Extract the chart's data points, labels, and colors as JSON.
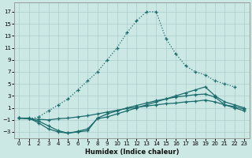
{
  "bg_color": "#cce8e5",
  "grid_color": "#aacece",
  "line_color": "#1a6b6b",
  "xlabel": "Humidex (Indice chaleur)",
  "xlim": [
    -0.5,
    23.5
  ],
  "ylim": [
    -4,
    18.5
  ],
  "xticks": [
    0,
    1,
    2,
    3,
    4,
    5,
    6,
    7,
    8,
    9,
    10,
    11,
    12,
    13,
    14,
    15,
    16,
    17,
    18,
    19,
    20,
    21,
    22,
    23
  ],
  "yticks": [
    -3,
    -1,
    1,
    3,
    5,
    7,
    9,
    11,
    13,
    15,
    17
  ],
  "lines": [
    {
      "x": [
        0,
        1,
        2,
        3,
        4,
        5,
        6,
        7,
        8,
        9,
        10,
        11,
        12,
        13,
        14,
        15,
        16,
        17,
        18,
        19,
        20,
        21,
        22
      ],
      "y": [
        -0.7,
        -0.8,
        -0.5,
        0.5,
        1.5,
        2.5,
        4.0,
        5.5,
        7.0,
        9.0,
        11.0,
        13.5,
        15.5,
        17.0,
        17.0,
        12.5,
        10.0,
        8.0,
        7.0,
        6.5,
        5.5,
        5.0,
        4.5
      ],
      "linestyle": "dotted"
    },
    {
      "x": [
        0,
        1,
        2,
        3,
        4,
        5,
        6,
        7,
        8,
        9,
        10,
        11,
        12,
        13,
        14,
        15,
        16,
        17,
        18,
        19,
        20,
        21,
        22,
        23
      ],
      "y": [
        -0.7,
        -0.8,
        -1.2,
        -2.0,
        -2.8,
        -3.2,
        -2.9,
        -2.5,
        -0.8,
        -0.5,
        0.0,
        0.5,
        1.0,
        1.5,
        2.0,
        2.5,
        3.0,
        3.5,
        4.0,
        4.5,
        3.0,
        2.0,
        1.5,
        1.0
      ],
      "linestyle": "solid"
    },
    {
      "x": [
        0,
        1,
        2,
        3,
        4,
        5,
        6,
        7,
        8,
        9,
        10,
        11,
        12,
        13,
        14,
        15,
        16,
        17,
        18,
        19,
        20,
        21,
        22,
        23
      ],
      "y": [
        -0.7,
        -0.8,
        -0.9,
        -1.0,
        -0.8,
        -0.7,
        -0.5,
        -0.3,
        0.0,
        0.3,
        0.6,
        0.9,
        1.1,
        1.3,
        1.5,
        1.7,
        1.8,
        2.0,
        2.1,
        2.3,
        2.0,
        1.5,
        1.2,
        0.8
      ],
      "linestyle": "solid"
    },
    {
      "x": [
        0,
        1,
        2,
        3,
        4,
        5,
        6,
        7,
        8,
        9,
        10,
        11,
        12,
        13,
        14,
        15,
        16,
        17,
        18,
        19,
        20,
        21,
        22,
        23
      ],
      "y": [
        -0.7,
        -0.7,
        -1.5,
        -2.5,
        -3.0,
        -3.2,
        -3.0,
        -2.8,
        -0.7,
        0.0,
        0.5,
        1.0,
        1.4,
        1.8,
        2.2,
        2.5,
        2.8,
        3.0,
        3.2,
        3.3,
        2.8,
        1.5,
        1.0,
        0.5
      ],
      "linestyle": "solid"
    }
  ]
}
